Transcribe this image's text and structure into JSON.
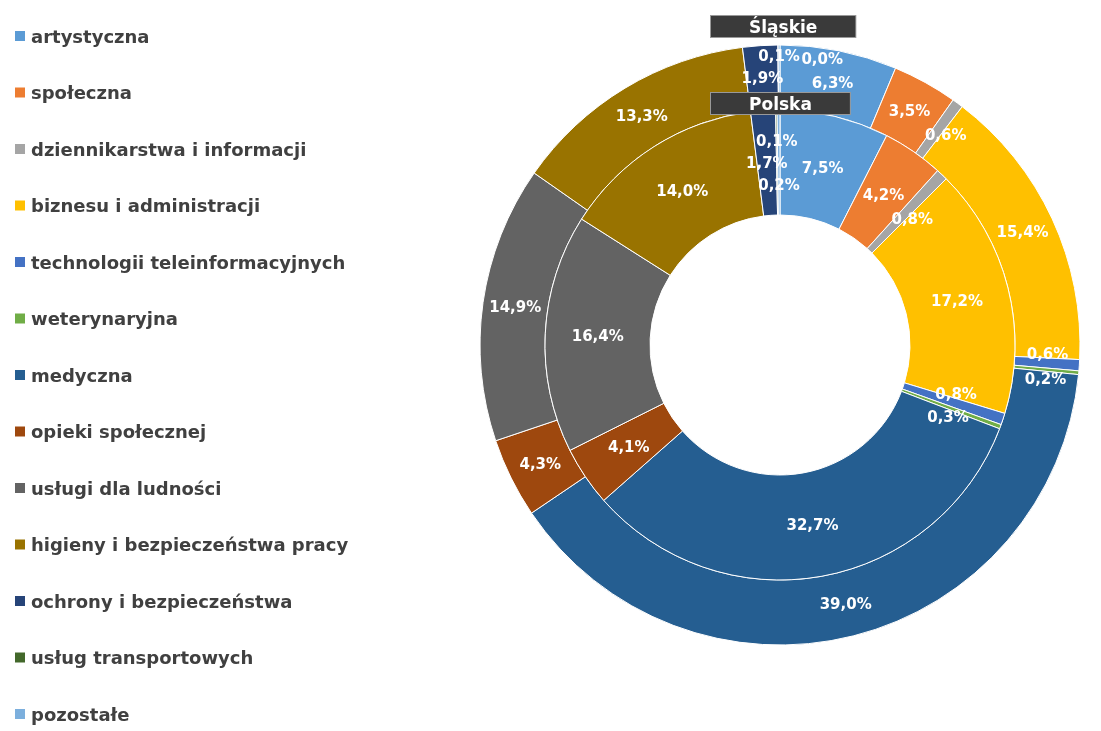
{
  "chart_data": {
    "type": "donut",
    "legend": "left",
    "data_labels": true,
    "categories": [
      "artystyczna",
      "społeczna",
      "dziennikarstwa i informacji",
      "biznesu i administracji",
      "technologii teleinformacyjnych",
      "weterynaryjna",
      "medyczna",
      "opieki społecznej",
      "usługi dla ludności",
      "higieny i bezpieczeństwa pracy",
      "ochrony i bezpieczeństwa",
      "usług transportowych",
      "pozostałe"
    ],
    "colors": [
      "#5b9bd5",
      "#ed7d31",
      "#a5a5a5",
      "#ffc000",
      "#4472c4",
      "#70ad47",
      "#255e91",
      "#9e480e",
      "#636363",
      "#997300",
      "#264478",
      "#43682b",
      "#7cafdd"
    ],
    "series": [
      {
        "name": "Śląskie",
        "values": [
          6.3,
          3.5,
          0.6,
          15.4,
          0.6,
          0.2,
          39.0,
          4.3,
          14.9,
          13.3,
          1.9,
          0.0,
          0.1
        ],
        "value_labels": [
          "6,3%",
          "3,5%",
          "0,6%",
          "15,4%",
          "0,6%",
          "0,2%",
          "39,0%",
          "4,3%",
          "14,9%",
          "13,3%",
          "1,9%",
          "0,0%",
          "0,1%"
        ]
      },
      {
        "name": "Polska",
        "values": [
          7.5,
          4.2,
          0.8,
          17.2,
          0.8,
          0.3,
          32.7,
          4.1,
          16.4,
          14.0,
          1.7,
          0.1,
          0.2
        ],
        "value_labels": [
          "7,5%",
          "4,2%",
          "0,8%",
          "17,2%",
          "0,8%",
          "0,3%",
          "32,7%",
          "4,1%",
          "16,4%",
          "14,0%",
          "1,7%",
          "0,1%",
          "0,2%"
        ]
      }
    ]
  }
}
